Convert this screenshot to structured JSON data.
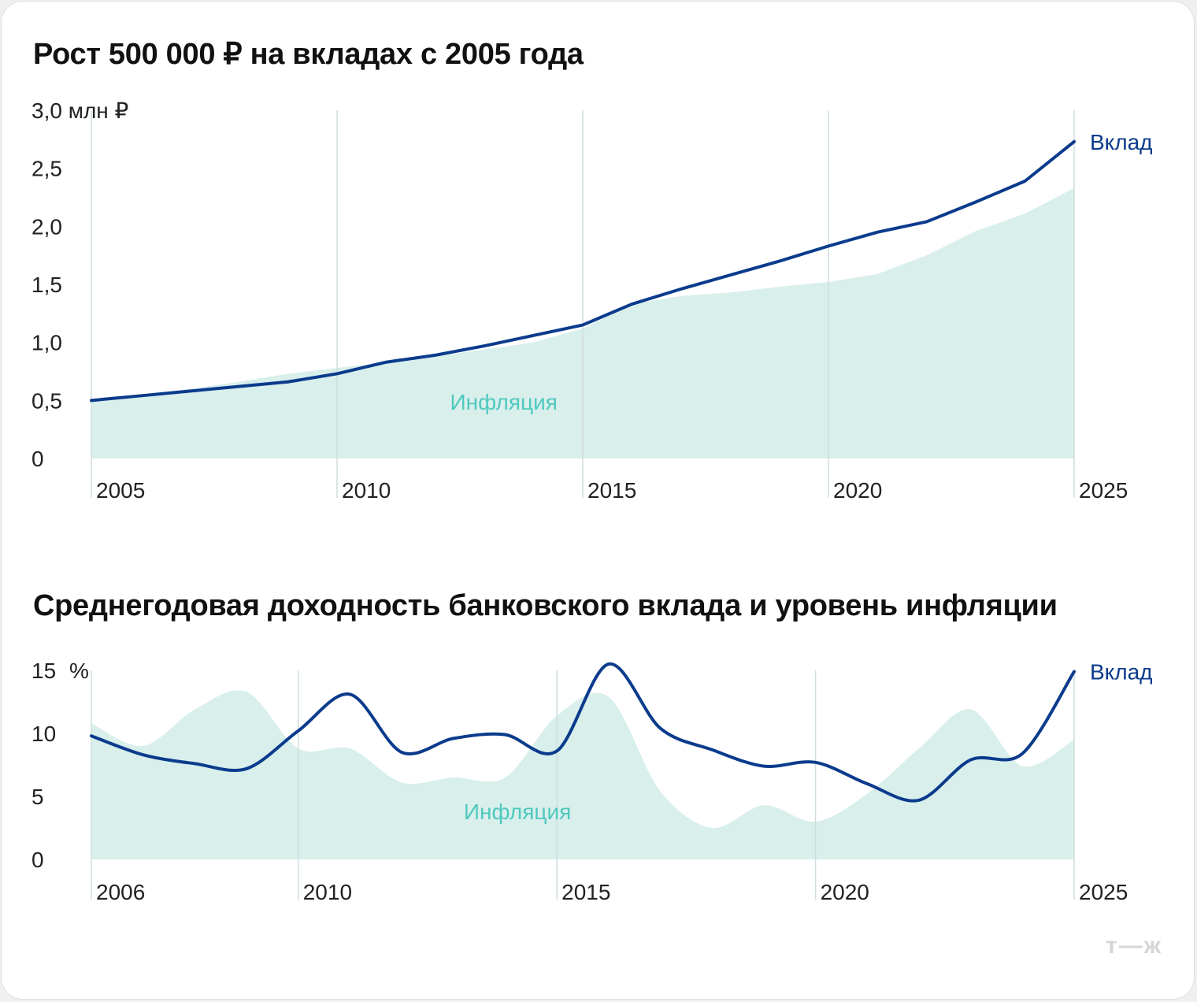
{
  "colors": {
    "deposit_line": "#0b3b8c",
    "inflation_fill": "#d8efec",
    "inflation_label": "#4fc9bd",
    "grid": "#cfdedc",
    "text": "#222222"
  },
  "logo": "т—ж",
  "chart_data": [
    {
      "type": "area",
      "title": "Рост 500 000 ₽ на вкладах с 2005 года",
      "y_unit": "3,0 млн ₽",
      "ylim": [
        0,
        3.0
      ],
      "y_ticks": [
        {
          "value": 0,
          "label": "0"
        },
        {
          "value": 0.5,
          "label": "0,5"
        },
        {
          "value": 1.0,
          "label": "1,0"
        },
        {
          "value": 1.5,
          "label": "1,5"
        },
        {
          "value": 2.0,
          "label": "2,0"
        },
        {
          "value": 2.5,
          "label": "2,5"
        },
        {
          "value": 3.0,
          "label": "3,0 млн ₽"
        }
      ],
      "xlim": [
        2005,
        2025
      ],
      "x_ticks": [
        {
          "value": 2005,
          "label": "2005"
        },
        {
          "value": 2010,
          "label": "2010"
        },
        {
          "value": 2015,
          "label": "2015"
        },
        {
          "value": 2020,
          "label": "2020"
        },
        {
          "value": 2025,
          "label": "2025"
        }
      ],
      "grid": "vertical at x ticks",
      "series": [
        {
          "name": "Инфляция",
          "kind": "area",
          "x": [
            2005,
            2006,
            2007,
            2008,
            2009,
            2010,
            2011,
            2012,
            2013,
            2014,
            2015,
            2016,
            2017,
            2018,
            2019,
            2020,
            2021,
            2022,
            2023,
            2024,
            2025
          ],
          "values": [
            0.5,
            0.55,
            0.6,
            0.66,
            0.73,
            0.78,
            0.83,
            0.88,
            0.94,
            1.0,
            1.12,
            1.33,
            1.4,
            1.43,
            1.48,
            1.52,
            1.59,
            1.75,
            1.96,
            2.11,
            2.33
          ]
        },
        {
          "name": "Вклад",
          "kind": "line",
          "x": [
            2005,
            2006,
            2007,
            2008,
            2009,
            2010,
            2011,
            2012,
            2013,
            2014,
            2015,
            2016,
            2017,
            2018,
            2019,
            2020,
            2021,
            2022,
            2023,
            2024,
            2025
          ],
          "values": [
            0.5,
            0.54,
            0.58,
            0.62,
            0.66,
            0.73,
            0.83,
            0.89,
            0.97,
            1.06,
            1.15,
            1.33,
            1.46,
            1.58,
            1.7,
            1.83,
            1.95,
            2.04,
            2.21,
            2.39,
            2.73
          ]
        }
      ],
      "annotations": [
        {
          "text": "Вклад",
          "series": "Вклад"
        },
        {
          "text": "Инфляция",
          "series": "Инфляция",
          "at": [
            2012.3,
            0.42
          ]
        }
      ]
    },
    {
      "type": "area",
      "title": "Среднегодовая доходность банковского вклада и уровень инфляции",
      "y_unit": "%",
      "ylim": [
        0,
        15
      ],
      "y_ticks": [
        {
          "value": 0,
          "label": "0"
        },
        {
          "value": 5,
          "label": "5"
        },
        {
          "value": 10,
          "label": "10"
        },
        {
          "value": 15,
          "label": "15"
        }
      ],
      "xlim": [
        2006,
        2025
      ],
      "x_ticks": [
        {
          "value": 2006,
          "label": "2006"
        },
        {
          "value": 2010,
          "label": "2010"
        },
        {
          "value": 2015,
          "label": "2015"
        },
        {
          "value": 2020,
          "label": "2020"
        },
        {
          "value": 2025,
          "label": "2025"
        }
      ],
      "grid": "vertical at x ticks",
      "series": [
        {
          "name": "Инфляция",
          "kind": "area",
          "x": [
            2006,
            2007,
            2008,
            2009,
            2010,
            2011,
            2012,
            2013,
            2014,
            2015,
            2016,
            2017,
            2018,
            2019,
            2020,
            2021,
            2022,
            2023,
            2024,
            2025
          ],
          "values": [
            10.8,
            9.0,
            11.9,
            13.3,
            8.8,
            8.8,
            6.1,
            6.5,
            6.5,
            11.4,
            12.9,
            5.4,
            2.5,
            4.3,
            3.0,
            5.2,
            8.8,
            11.9,
            7.4,
            9.5
          ]
        },
        {
          "name": "Вклад",
          "kind": "line",
          "x": [
            2006,
            2007,
            2008,
            2009,
            2010,
            2011,
            2012,
            2013,
            2014,
            2015,
            2016,
            2017,
            2018,
            2019,
            2020,
            2021,
            2022,
            2023,
            2024,
            2025
          ],
          "values": [
            9.8,
            8.3,
            7.6,
            7.2,
            10.2,
            13.1,
            8.5,
            9.6,
            9.9,
            8.6,
            15.5,
            10.4,
            8.7,
            7.4,
            7.7,
            6.0,
            4.7,
            7.9,
            8.4,
            14.9
          ]
        }
      ],
      "annotations": [
        {
          "text": "Вклад",
          "series": "Вклад"
        },
        {
          "text": "Инфляция",
          "series": "Инфляция",
          "at": [
            2013.2,
            3.2
          ]
        }
      ]
    }
  ]
}
